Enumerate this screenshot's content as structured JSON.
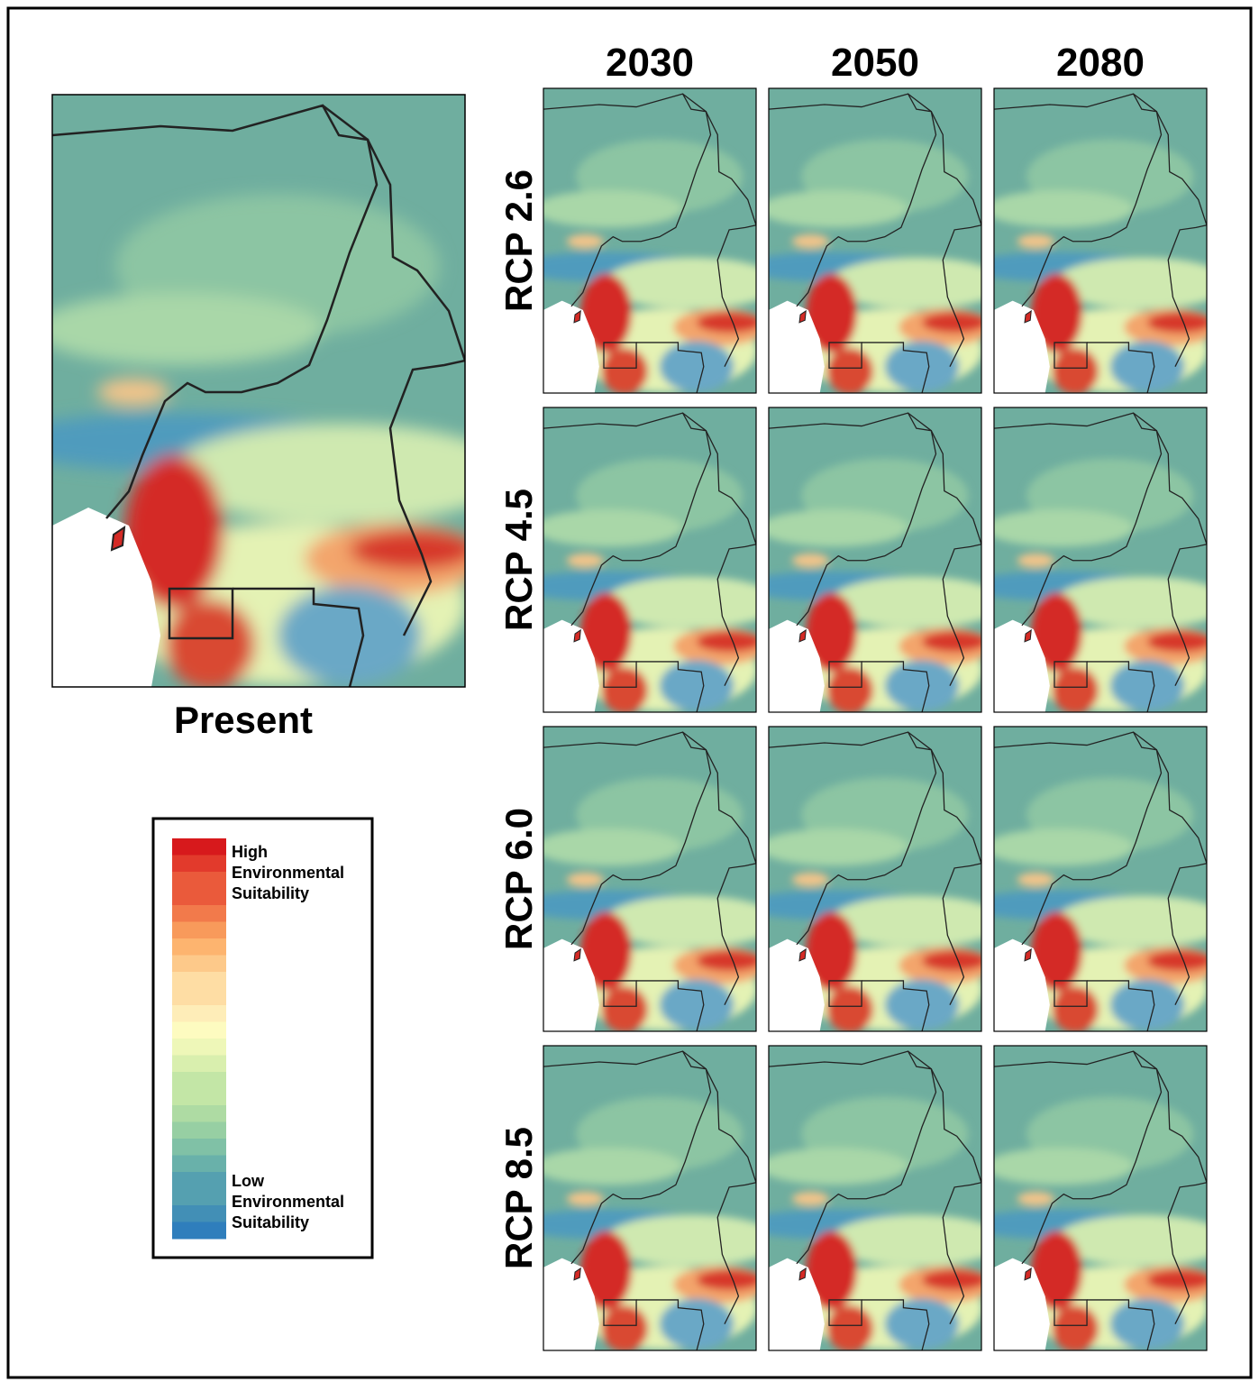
{
  "present": {
    "label": "Present"
  },
  "columns": [
    "2030",
    "2050",
    "2080"
  ],
  "rows": [
    "RCP 2.6",
    "RCP 4.5",
    "RCP 6.0",
    "RCP 8.5"
  ],
  "legend": {
    "high": [
      "High",
      "Environmental",
      "Suitability"
    ],
    "low": [
      "Low",
      "Environmental",
      "Suitability"
    ]
  }
}
